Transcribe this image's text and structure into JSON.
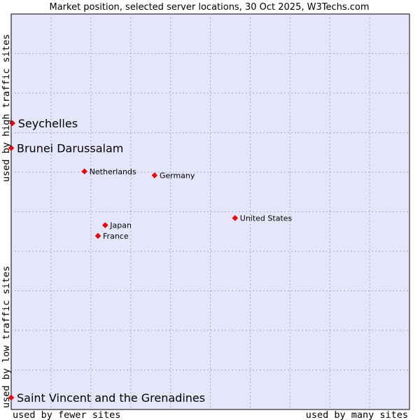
{
  "chart_data": {
    "type": "scatter",
    "title": "Market position, selected server locations, 30 Oct 2025, W3Techs.com",
    "xlabel_left": "used by fewer sites",
    "xlabel_right": "used by many sites",
    "ylabel_bottom": "used by low traffic sites",
    "ylabel_top": "used by high traffic sites",
    "xlim": [
      0,
      100
    ],
    "ylim": [
      0,
      100
    ],
    "grid": true,
    "colors": {
      "plot_bg": "#e6e6fa",
      "marker": "#ff0000",
      "grid": "#a8a8c0"
    },
    "points": [
      {
        "name": "Seychelles",
        "x": 0.3,
        "y": 72.4,
        "size": "large"
      },
      {
        "name": "Brunei Darussalam",
        "x": 0.0,
        "y": 66.1,
        "size": "large"
      },
      {
        "name": "Netherlands",
        "x": 18.4,
        "y": 60.2,
        "size": "small"
      },
      {
        "name": "Germany",
        "x": 36.0,
        "y": 59.2,
        "size": "small"
      },
      {
        "name": "United States",
        "x": 56.2,
        "y": 48.4,
        "size": "small"
      },
      {
        "name": "Japan",
        "x": 23.6,
        "y": 46.6,
        "size": "small"
      },
      {
        "name": "France",
        "x": 21.8,
        "y": 43.9,
        "size": "small"
      },
      {
        "name": "Saint Vincent and the Grenadines",
        "x": 0.0,
        "y": 3.0,
        "size": "large"
      }
    ]
  }
}
